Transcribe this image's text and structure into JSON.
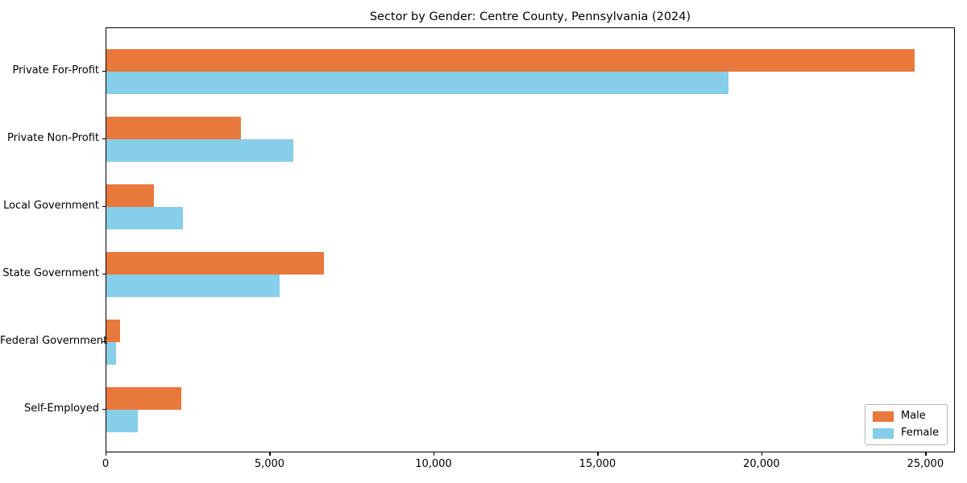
{
  "title": "Sector by Gender: Centre County, Pennsylvania (2024)",
  "colors": {
    "male": "#e8783b",
    "female": "#87ceeb",
    "frame": "#000000",
    "background": "#ffffff",
    "legend_border": "#b5b5b5"
  },
  "chart_data": {
    "type": "bar",
    "orientation": "horizontal",
    "title": "Sector by Gender: Centre County, Pennsylvania (2024)",
    "categories": [
      "Private For-Profit",
      "Private Non-Profit",
      "Local Government",
      "State Government",
      "Federal Government",
      "Self-Employed"
    ],
    "series": [
      {
        "name": "Male",
        "color": "#e8783b",
        "values": [
          24700,
          4100,
          1450,
          6650,
          410,
          2300
        ]
      },
      {
        "name": "Female",
        "color": "#87ceeb",
        "values": [
          19000,
          5700,
          2330,
          5300,
          300,
          950
        ]
      }
    ],
    "xlabel": "",
    "ylabel": "",
    "xlim": [
      0,
      25900
    ],
    "xticks": [
      0,
      5000,
      10000,
      15000,
      20000,
      25000
    ],
    "xtick_labels": [
      "0",
      "5,000",
      "10,000",
      "15,000",
      "20,000",
      "25,000"
    ],
    "grid": false,
    "legend": {
      "position": "lower right",
      "entries": [
        "Male",
        "Female"
      ]
    }
  }
}
